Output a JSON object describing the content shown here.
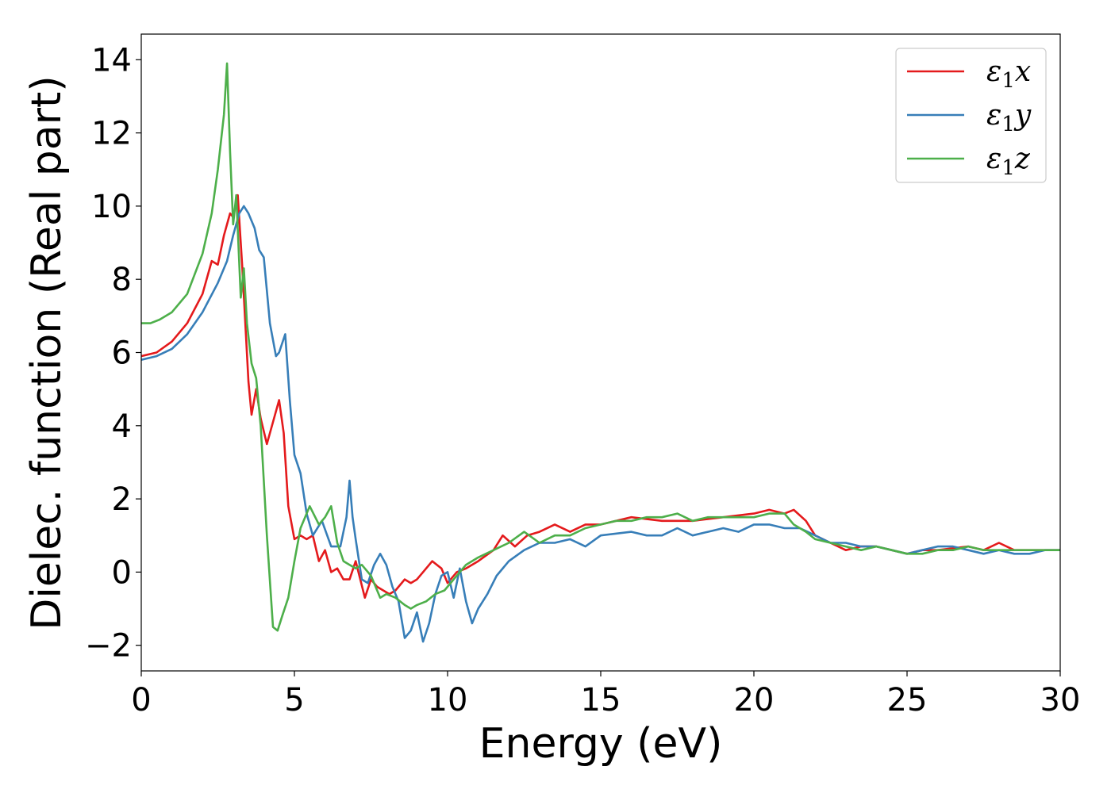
{
  "chart_data": {
    "type": "line",
    "title": "",
    "xlabel": "Energy (eV)",
    "ylabel": "Dielec. function (Real part)",
    "xlim": [
      0,
      30
    ],
    "ylim": [
      -2.7,
      14.7
    ],
    "xticks": [
      0,
      5,
      10,
      15,
      20,
      25,
      30
    ],
    "xtick_labels": [
      "0",
      "5",
      "10",
      "15",
      "20",
      "25",
      "30"
    ],
    "yticks": [
      -2,
      0,
      2,
      4,
      6,
      8,
      10,
      12,
      14
    ],
    "ytick_labels": [
      "−2",
      "0",
      "2",
      "4",
      "6",
      "8",
      "10",
      "12",
      "14"
    ],
    "grid": false,
    "legend_position": "top-right",
    "series": [
      {
        "name": "ε1x",
        "legend_main": "ε",
        "legend_sub": "1",
        "legend_suffix": "x",
        "color": "#e41a1c",
        "x": [
          0,
          0.5,
          1.0,
          1.5,
          2.0,
          2.3,
          2.5,
          2.7,
          2.9,
          3.0,
          3.15,
          3.3,
          3.5,
          3.6,
          3.75,
          3.9,
          4.1,
          4.3,
          4.5,
          4.65,
          4.8,
          5.0,
          5.2,
          5.4,
          5.6,
          5.8,
          6.0,
          6.2,
          6.4,
          6.6,
          6.8,
          7.0,
          7.3,
          7.5,
          7.7,
          7.9,
          8.1,
          8.3,
          8.6,
          8.8,
          9.0,
          9.2,
          9.5,
          9.8,
          10.0,
          10.3,
          10.6,
          11.0,
          11.5,
          11.8,
          12.2,
          12.6,
          13.0,
          13.5,
          14.0,
          14.5,
          15.0,
          15.5,
          16.0,
          17.0,
          18.0,
          19.0,
          20.0,
          20.5,
          21.0,
          21.3,
          21.7,
          22.0,
          22.5,
          23.0,
          23.5,
          24.0,
          24.5,
          25.0,
          25.5,
          26.0,
          27.0,
          27.5,
          28.0,
          28.5,
          29.0,
          29.5,
          30.0
        ],
        "y": [
          5.9,
          6.0,
          6.3,
          6.8,
          7.6,
          8.5,
          8.4,
          9.2,
          9.8,
          9.7,
          10.3,
          8.3,
          5.2,
          4.3,
          5.0,
          4.2,
          3.5,
          4.1,
          4.7,
          3.8,
          1.8,
          0.9,
          1.0,
          0.9,
          1.0,
          0.3,
          0.6,
          0.0,
          0.1,
          -0.2,
          -0.2,
          0.3,
          -0.7,
          -0.2,
          -0.4,
          -0.5,
          -0.6,
          -0.5,
          -0.2,
          -0.3,
          -0.2,
          0.0,
          0.3,
          0.1,
          -0.3,
          0.0,
          0.1,
          0.3,
          0.6,
          1.0,
          0.7,
          1.0,
          1.1,
          1.3,
          1.1,
          1.3,
          1.3,
          1.4,
          1.5,
          1.4,
          1.4,
          1.5,
          1.6,
          1.7,
          1.6,
          1.7,
          1.4,
          1.0,
          0.8,
          0.6,
          0.7,
          0.7,
          0.6,
          0.5,
          0.6,
          0.6,
          0.7,
          0.6,
          0.8,
          0.6,
          0.6,
          0.6,
          0.6
        ]
      },
      {
        "name": "ε1y",
        "legend_main": "ε",
        "legend_sub": "1",
        "legend_suffix": "y",
        "color": "#377eb8",
        "x": [
          0,
          0.5,
          1.0,
          1.5,
          2.0,
          2.5,
          2.8,
          3.0,
          3.2,
          3.35,
          3.5,
          3.7,
          3.85,
          4.0,
          4.2,
          4.4,
          4.5,
          4.7,
          4.85,
          5.0,
          5.2,
          5.4,
          5.6,
          5.9,
          6.2,
          6.5,
          6.7,
          6.8,
          6.9,
          7.0,
          7.2,
          7.4,
          7.6,
          7.8,
          8.0,
          8.2,
          8.4,
          8.6,
          8.8,
          9.0,
          9.2,
          9.4,
          9.6,
          9.8,
          10.0,
          10.2,
          10.4,
          10.6,
          10.8,
          11.0,
          11.3,
          11.6,
          12.0,
          12.5,
          13.0,
          13.5,
          14.0,
          14.5,
          15.0,
          16.0,
          16.5,
          17.0,
          17.5,
          18.0,
          18.5,
          19.0,
          19.5,
          20.0,
          20.5,
          21.0,
          21.5,
          22.0,
          22.5,
          23.0,
          23.5,
          24.0,
          24.5,
          25.0,
          25.5,
          26.0,
          26.5,
          27.0,
          27.5,
          28.0,
          28.5,
          29.0,
          29.5,
          30.0
        ],
        "y": [
          5.8,
          5.9,
          6.1,
          6.5,
          7.1,
          7.9,
          8.5,
          9.2,
          9.8,
          10.0,
          9.8,
          9.4,
          8.8,
          8.6,
          6.8,
          5.9,
          6.0,
          6.5,
          4.7,
          3.2,
          2.7,
          1.6,
          1.0,
          1.4,
          0.7,
          0.7,
          1.5,
          2.5,
          1.5,
          0.9,
          -0.2,
          -0.3,
          0.2,
          0.5,
          0.2,
          -0.4,
          -0.8,
          -1.8,
          -1.6,
          -1.1,
          -1.9,
          -1.4,
          -0.6,
          -0.1,
          0.0,
          -0.7,
          0.1,
          -0.8,
          -1.4,
          -1.0,
          -0.6,
          -0.1,
          0.3,
          0.6,
          0.8,
          0.8,
          0.9,
          0.7,
          1.0,
          1.1,
          1.0,
          1.0,
          1.2,
          1.0,
          1.1,
          1.2,
          1.1,
          1.3,
          1.3,
          1.2,
          1.2,
          1.0,
          0.8,
          0.8,
          0.7,
          0.7,
          0.6,
          0.5,
          0.6,
          0.7,
          0.7,
          0.6,
          0.5,
          0.6,
          0.5,
          0.5,
          0.6,
          0.6
        ]
      },
      {
        "name": "ε1z",
        "legend_main": "ε",
        "legend_sub": "1",
        "legend_suffix": "z",
        "color": "#4daf4a",
        "x": [
          0,
          0.3,
          0.6,
          1.0,
          1.5,
          2.0,
          2.3,
          2.5,
          2.7,
          2.8,
          2.9,
          3.0,
          3.1,
          3.25,
          3.35,
          3.45,
          3.6,
          3.75,
          3.9,
          4.1,
          4.3,
          4.45,
          4.6,
          4.8,
          5.0,
          5.2,
          5.5,
          5.8,
          6.0,
          6.2,
          6.4,
          6.6,
          6.8,
          7.0,
          7.2,
          7.5,
          7.8,
          8.0,
          8.3,
          8.6,
          8.8,
          9.0,
          9.3,
          9.6,
          9.9,
          10.2,
          10.6,
          11.0,
          11.5,
          12.0,
          12.5,
          13.0,
          13.5,
          14.0,
          14.5,
          15.0,
          15.5,
          16.0,
          16.5,
          17.0,
          17.5,
          18.0,
          18.5,
          19.0,
          19.5,
          20.0,
          20.5,
          21.0,
          21.3,
          21.7,
          22.0,
          22.5,
          23.0,
          23.5,
          24.0,
          24.5,
          25.0,
          25.5,
          26.0,
          26.5,
          27.0,
          27.5,
          28.0,
          28.5,
          29.0,
          29.5,
          30.0
        ],
        "y": [
          6.8,
          6.8,
          6.9,
          7.1,
          7.6,
          8.7,
          9.8,
          11.0,
          12.5,
          13.9,
          11.5,
          9.5,
          10.3,
          7.5,
          8.3,
          6.8,
          5.7,
          5.3,
          4.0,
          1.0,
          -1.5,
          -1.6,
          -1.2,
          -0.7,
          0.3,
          1.2,
          1.8,
          1.3,
          1.5,
          1.8,
          0.8,
          0.3,
          0.2,
          0.1,
          0.2,
          -0.1,
          -0.7,
          -0.6,
          -0.7,
          -0.9,
          -1.0,
          -0.9,
          -0.8,
          -0.6,
          -0.5,
          -0.2,
          0.2,
          0.4,
          0.6,
          0.8,
          1.1,
          0.8,
          1.0,
          1.0,
          1.2,
          1.3,
          1.4,
          1.4,
          1.5,
          1.5,
          1.6,
          1.4,
          1.5,
          1.5,
          1.5,
          1.5,
          1.6,
          1.6,
          1.3,
          1.1,
          0.9,
          0.8,
          0.7,
          0.6,
          0.7,
          0.6,
          0.5,
          0.5,
          0.6,
          0.6,
          0.7,
          0.6,
          0.6,
          0.6,
          0.6,
          0.6,
          0.6
        ]
      }
    ]
  }
}
